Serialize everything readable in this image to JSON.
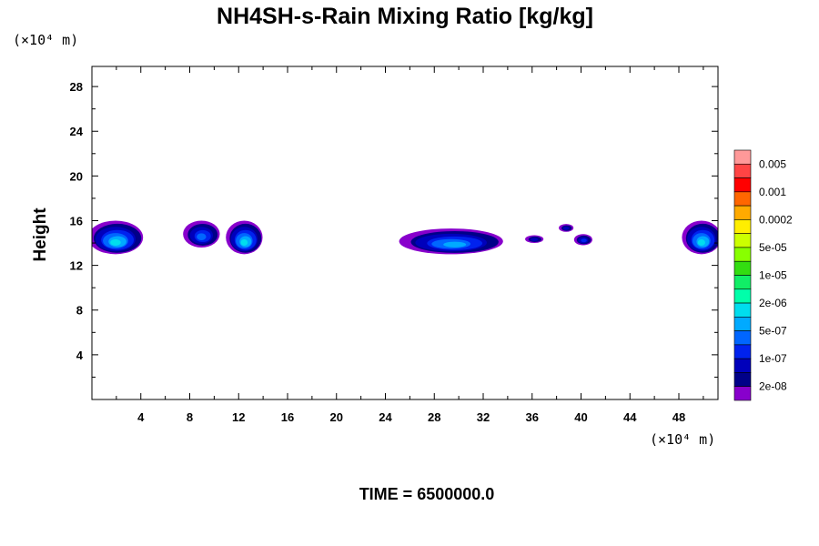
{
  "chart_data": {
    "type": "heatmap",
    "title": "NH4SH-s-Rain Mixing Ratio [kg/kg]",
    "ylabel": "Height",
    "x_unit": "(×10⁴ m)",
    "y_unit": "(×10⁴ m)",
    "xlim": [
      0,
      51.2
    ],
    "ylim": [
      0,
      29.8
    ],
    "x_ticks": [
      "4",
      "8",
      "12",
      "16",
      "20",
      "24",
      "28",
      "32",
      "36",
      "40",
      "44",
      "48"
    ],
    "y_ticks": [
      "4",
      "8",
      "12",
      "16",
      "20",
      "24",
      "28"
    ],
    "grid": false,
    "time_label": "TIME = 6500000.0",
    "colorbar": {
      "labels": [
        "0.005",
        "0.001",
        "0.0002",
        "5e-05",
        "1e-05",
        "2e-06",
        "5e-07",
        "1e-07",
        "2e-08"
      ],
      "colors": [
        "#ff9999",
        "#ff4444",
        "#ff0000",
        "#ff6600",
        "#ffaa00",
        "#ffee00",
        "#ccff00",
        "#88ff00",
        "#33dd11",
        "#11ee66",
        "#00ffaa",
        "#00ddee",
        "#00aaff",
        "#0066ff",
        "#0022ee",
        "#0000bb",
        "#000088",
        "#8800cc"
      ]
    },
    "cloud_features": [
      {
        "x_center": 2.0,
        "x_width": 4.5,
        "z_base": 13.0,
        "z_top": 16.0,
        "max_level": 6
      },
      {
        "x_center": 9.0,
        "x_width": 3.0,
        "z_base": 13.6,
        "z_top": 16.0,
        "max_level": 4
      },
      {
        "x_center": 12.5,
        "x_width": 3.0,
        "z_base": 13.0,
        "z_top": 16.0,
        "max_level": 6
      },
      {
        "x_center": 29.5,
        "x_width": 8.5,
        "z_base": 13.0,
        "z_top": 15.3,
        "max_level": 5
      },
      {
        "x_center": 36.2,
        "x_width": 1.5,
        "z_base": 14.0,
        "z_top": 14.7,
        "max_level": 2
      },
      {
        "x_center": 40.2,
        "x_width": 1.5,
        "z_base": 13.8,
        "z_top": 14.8,
        "max_level": 3
      },
      {
        "x_center": 38.8,
        "x_width": 1.2,
        "z_base": 15.0,
        "z_top": 15.7,
        "max_level": 2
      },
      {
        "x_center": 49.9,
        "x_width": 3.2,
        "z_base": 13.0,
        "z_top": 16.0,
        "max_level": 6
      }
    ]
  }
}
